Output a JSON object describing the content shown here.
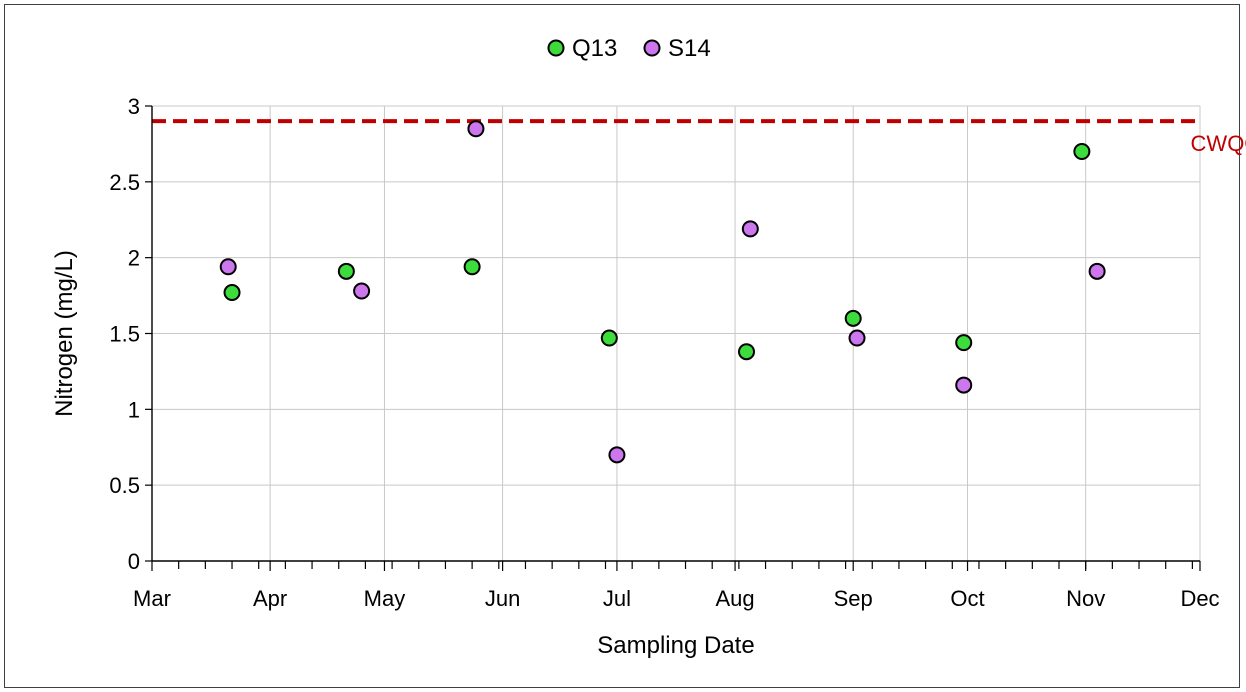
{
  "chart_data": {
    "type": "scatter",
    "title": "",
    "xlabel": "Sampling Date",
    "ylabel": "Nitrogen (mg/L)",
    "x_type": "date",
    "year": "",
    "xlim": [
      "03-01",
      "12-01"
    ],
    "ylim": [
      0,
      3
    ],
    "x_ticks": [
      {
        "date": "03-01",
        "label": "Mar"
      },
      {
        "date": "04-01",
        "label": "Apr"
      },
      {
        "date": "05-01",
        "label": "May"
      },
      {
        "date": "06-01",
        "label": "Jun"
      },
      {
        "date": "07-01",
        "label": "Jul"
      },
      {
        "date": "08-01",
        "label": "Aug"
      },
      {
        "date": "09-01",
        "label": "Sep"
      },
      {
        "date": "10-01",
        "label": "Oct"
      },
      {
        "date": "11-01",
        "label": "Nov"
      },
      {
        "date": "12-01",
        "label": "Dec"
      }
    ],
    "y_ticks": [
      {
        "value": 0,
        "label": "0"
      },
      {
        "value": 0.5,
        "label": "0.5"
      },
      {
        "value": 1,
        "label": "1"
      },
      {
        "value": 1.5,
        "label": "1.5"
      },
      {
        "value": 2,
        "label": "2"
      },
      {
        "value": 2.5,
        "label": "2.5"
      },
      {
        "value": 3,
        "label": "3"
      }
    ],
    "grid": true,
    "legend_position": "top-center",
    "series": [
      {
        "name": "Q13",
        "color": "#3ddc3d",
        "points": [
          {
            "x": "03-22",
            "y": 1.77
          },
          {
            "x": "04-21",
            "y": 1.91
          },
          {
            "x": "05-24",
            "y": 1.94
          },
          {
            "x": "06-29",
            "y": 1.47
          },
          {
            "x": "08-04",
            "y": 1.38
          },
          {
            "x": "09-01",
            "y": 1.6
          },
          {
            "x": "09-30",
            "y": 1.44
          },
          {
            "x": "10-31",
            "y": 2.7
          }
        ]
      },
      {
        "name": "S14",
        "color": "#cc77ee",
        "points": [
          {
            "x": "03-21",
            "y": 1.94
          },
          {
            "x": "04-25",
            "y": 1.78
          },
          {
            "x": "05-25",
            "y": 2.85
          },
          {
            "x": "07-01",
            "y": 0.7
          },
          {
            "x": "08-05",
            "y": 2.19
          },
          {
            "x": "09-02",
            "y": 1.47
          },
          {
            "x": "09-30",
            "y": 1.16
          },
          {
            "x": "11-04",
            "y": 1.91
          }
        ]
      }
    ],
    "reference_line": {
      "label": "CWQG",
      "value": 2.9,
      "color": "#c00000",
      "style": "dashed"
    }
  }
}
